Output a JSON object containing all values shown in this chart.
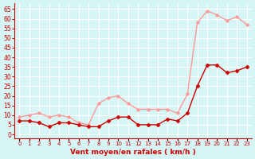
{
  "x": [
    0,
    1,
    2,
    3,
    4,
    5,
    6,
    7,
    8,
    9,
    10,
    11,
    12,
    13,
    14,
    15,
    16,
    17,
    18,
    19,
    20,
    21,
    22,
    23
  ],
  "moyen": [
    7,
    7,
    6,
    4,
    6,
    6,
    5,
    4,
    4,
    7,
    9,
    9,
    5,
    5,
    5,
    8,
    7,
    11,
    25,
    36,
    36,
    32,
    33,
    35
  ],
  "rafales": [
    9,
    10,
    11,
    9,
    10,
    9,
    6,
    5,
    16,
    19,
    20,
    16,
    13,
    13,
    13,
    13,
    11,
    21,
    58,
    64,
    62,
    59,
    61,
    57
  ],
  "bg_color": "#d6f5f5",
  "grid_color": "#ffffff",
  "moyen_color": "#cc0000",
  "rafales_color": "#ff9999",
  "xlabel": "Vent moyen/en rafales ( km/h )",
  "xlabel_color": "#cc0000",
  "yticks": [
    0,
    5,
    10,
    15,
    20,
    25,
    30,
    35,
    40,
    45,
    50,
    55,
    60,
    65
  ],
  "ylim": [
    -2,
    68
  ],
  "xlim": [
    -0.5,
    23.5
  ]
}
